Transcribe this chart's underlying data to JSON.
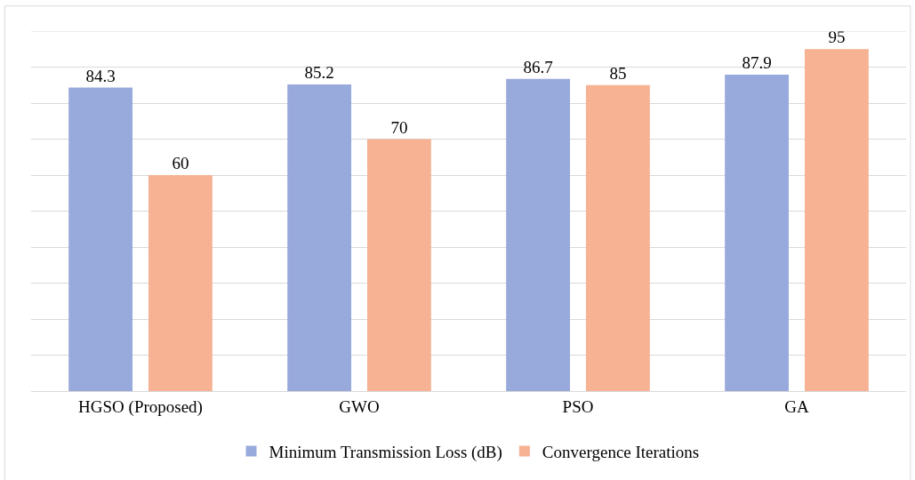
{
  "chart_data": {
    "type": "bar",
    "categories": [
      "HGSO (Proposed)",
      "GWO",
      "PSO",
      "GA"
    ],
    "series": [
      {
        "name": "Minimum Transmission Loss (dB)",
        "color": "#98a9dc",
        "values": [
          84.3,
          85.2,
          86.7,
          87.9
        ]
      },
      {
        "name": "Convergence Iterations",
        "color": "#f6b293",
        "values": [
          60,
          70,
          85,
          95
        ]
      }
    ],
    "ylim": [
      0,
      100
    ],
    "yticks": [
      {
        "value": 0,
        "label": null
      },
      {
        "value": 10,
        "label": null
      },
      {
        "value": 20,
        "label": null
      },
      {
        "value": 30,
        "label": null
      },
      {
        "value": 40,
        "label": null
      },
      {
        "value": 50,
        "label": null
      },
      {
        "value": 60,
        "label": null
      },
      {
        "value": 70,
        "label": null
      },
      {
        "value": 80,
        "label": null
      },
      {
        "value": 90,
        "label": null
      },
      {
        "value": 100,
        "label": null
      }
    ],
    "tick_labels": "x",
    "grid": "y",
    "legend": "bottom",
    "data_labels": true
  }
}
